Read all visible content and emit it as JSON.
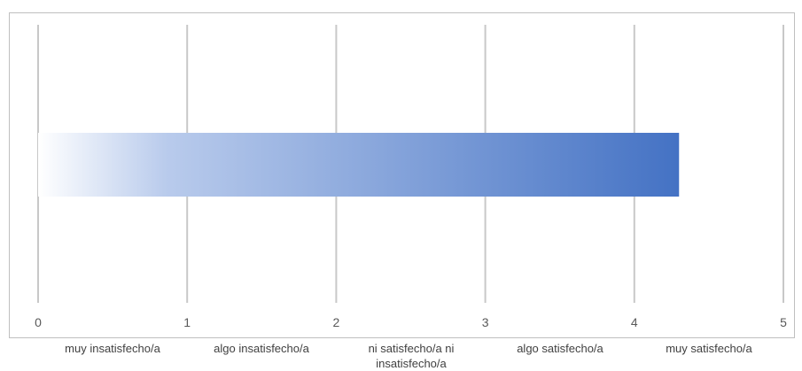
{
  "chart_data": {
    "type": "bar",
    "orientation": "horizontal",
    "title": "",
    "xlim": [
      0,
      5
    ],
    "x_ticks": [
      "0",
      "1",
      "2",
      "3",
      "4",
      "5"
    ],
    "scale_labels": [
      "muy insatisfecho/a",
      "algo insatisfecho/a",
      "ni satisfecho/a ni insatisfecho/a",
      "algo satisfecho/a",
      "muy satisfecho/a"
    ],
    "values": [
      4.3
    ],
    "grid": true,
    "legend": "none",
    "bar_color": "#4472c4"
  }
}
